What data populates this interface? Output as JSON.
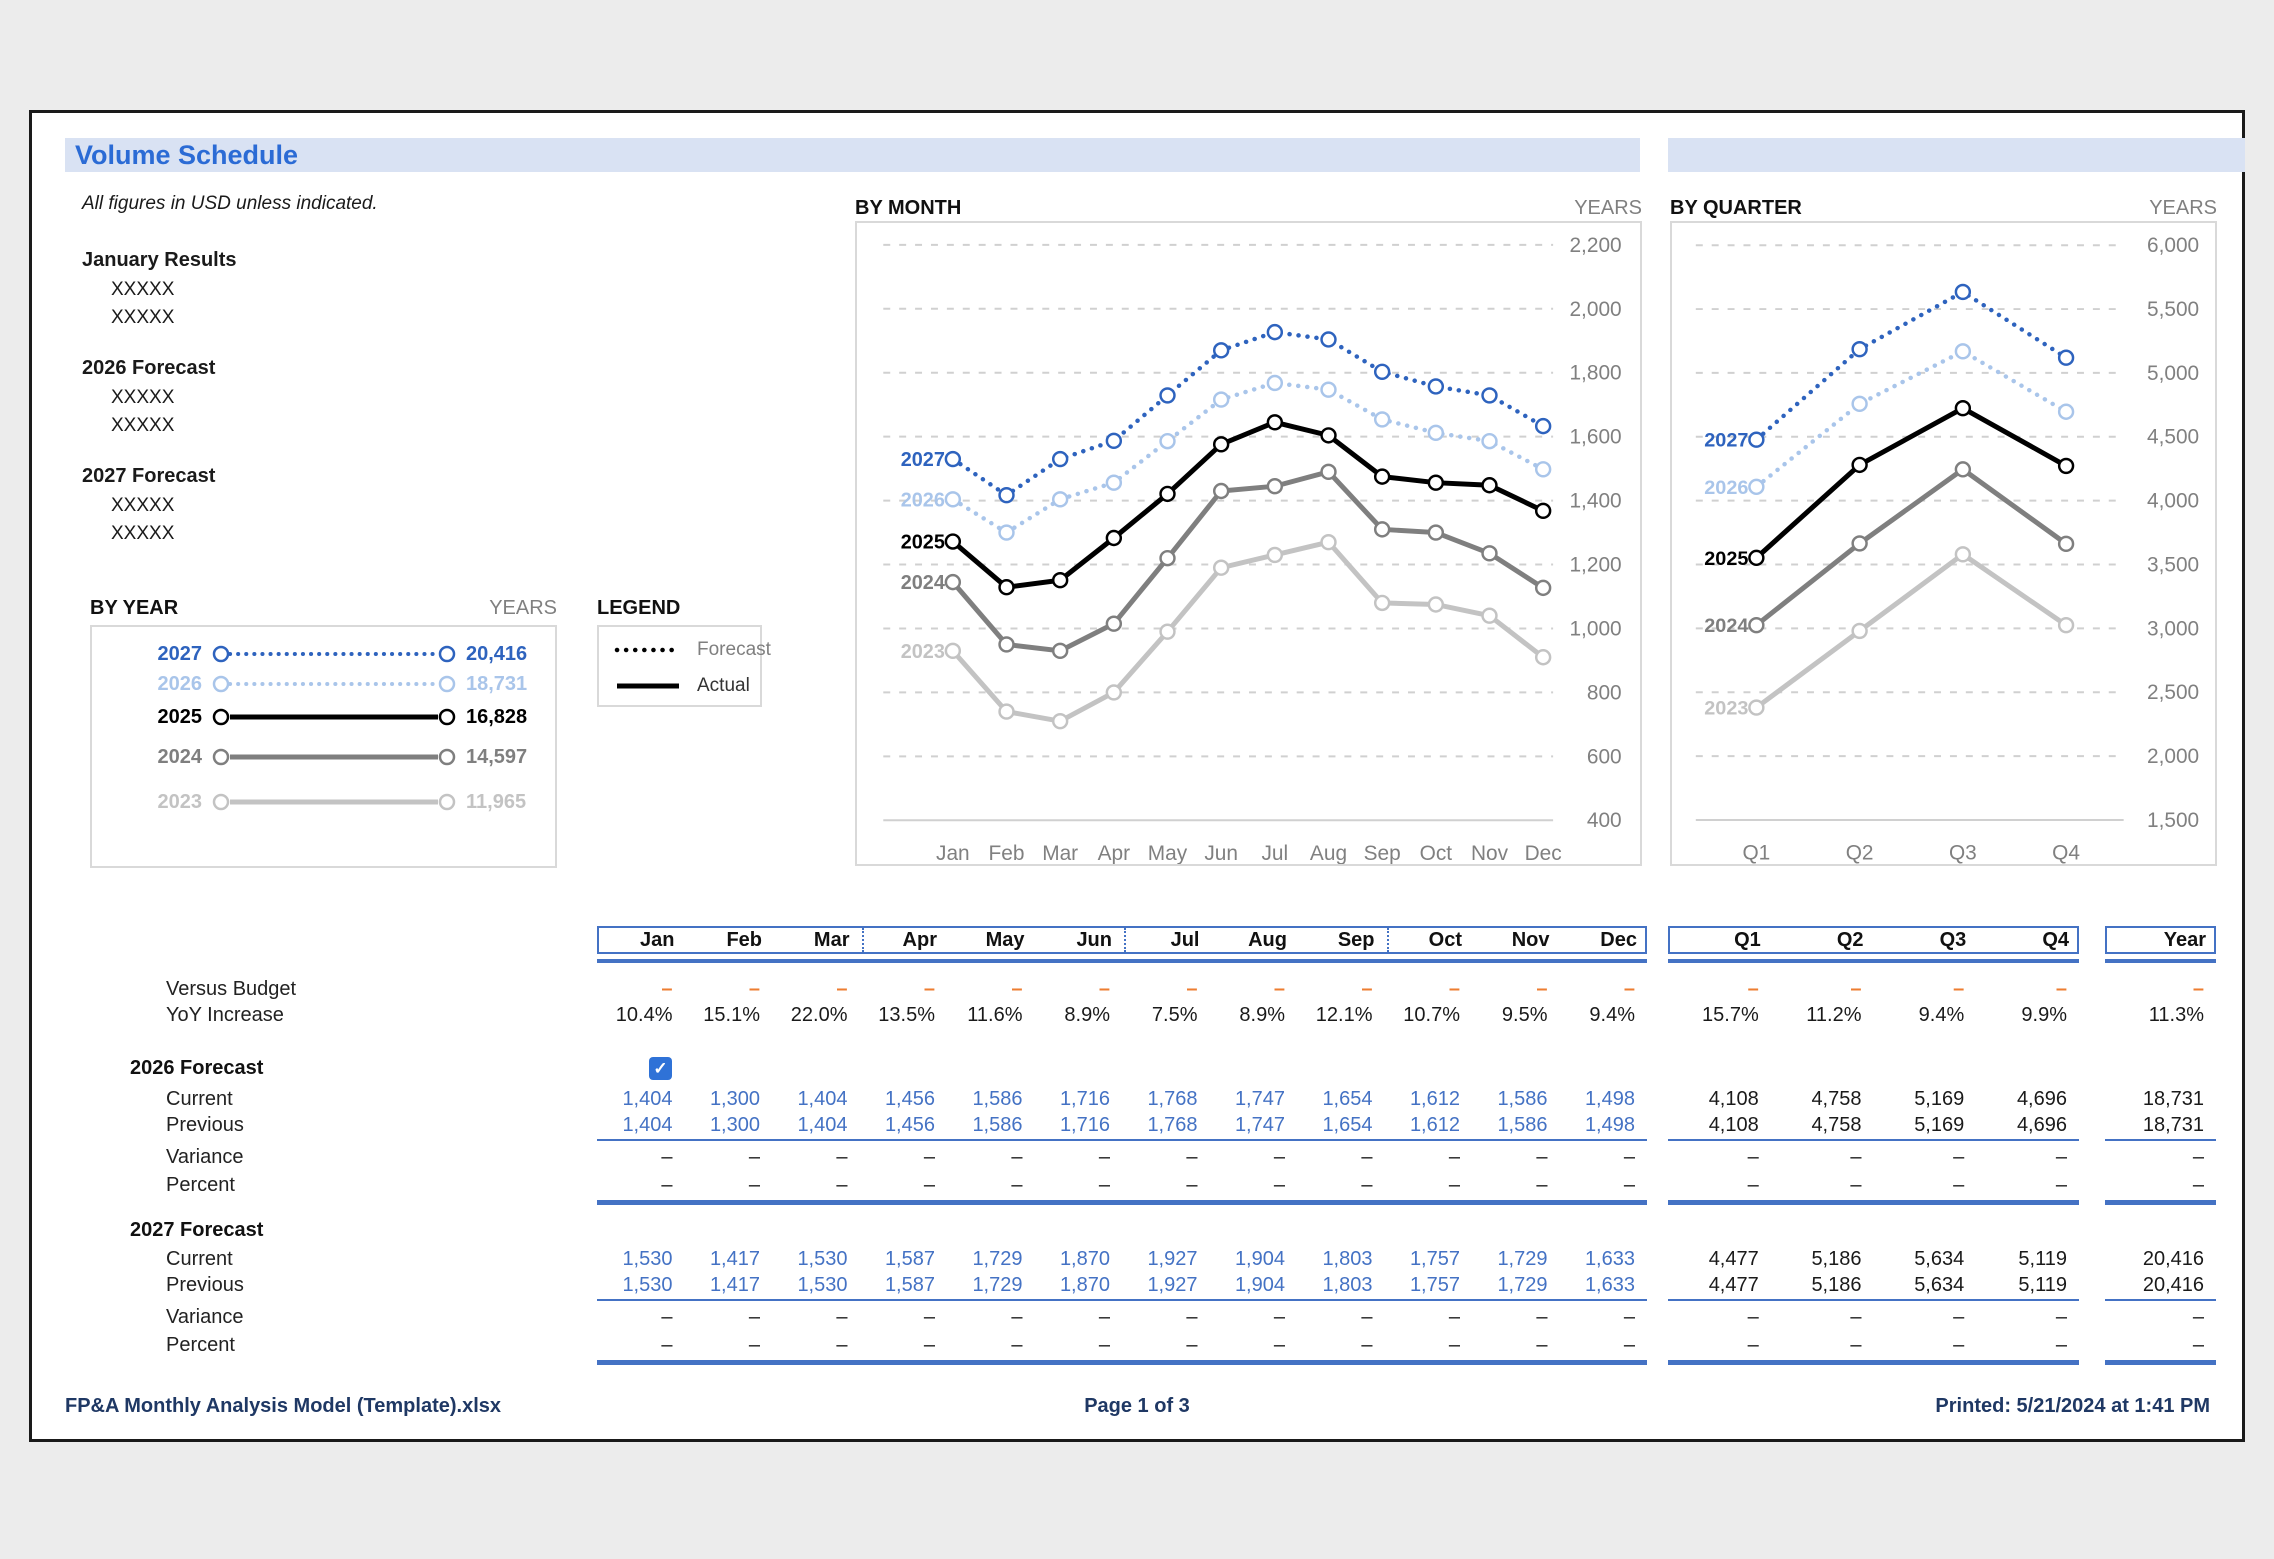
{
  "page": {
    "title": "Volume Schedule",
    "note": "All figures in USD unless indicated.",
    "left_sections": [
      {
        "heading": "January Results",
        "lines": [
          "XXXXX",
          "XXXXX"
        ]
      },
      {
        "heading": "2026 Forecast",
        "lines": [
          "XXXXX",
          "XXXXX"
        ]
      },
      {
        "heading": "2027 Forecast",
        "lines": [
          "XXXXX",
          "XXXXX"
        ]
      }
    ],
    "footer": {
      "filename": "FP&A Monthly Analysis Model (Template).xlsx",
      "page_number": "Page 1 of 3",
      "printed": "Printed: 5/21/2024 at 1:41 PM"
    }
  },
  "legend": {
    "title": "LEGEND",
    "items": [
      {
        "label": "Forecast",
        "style": "dotted"
      },
      {
        "label": "Actual",
        "style": "solid"
      }
    ]
  },
  "colors": {
    "accent_blue": "#4472C4",
    "value_blue": "#4472C4",
    "orange_dash": "#ED7D31",
    "footer_navy": "#1F3864",
    "title_blue": "#2B6BD5",
    "title_bar_bg": "#D9E2F3",
    "grid_gray": "#D0D0D0",
    "axis_gray": "#808080",
    "black_value": "#1a1a1a",
    "series": {
      "2027": "#2E63BE",
      "2026": "#A9C5EA",
      "2025": "#000000",
      "2024": "#7F7F7F",
      "2023": "#C3C3C3"
    }
  },
  "chart_data": [
    {
      "id": "by_year",
      "type": "line",
      "title": "BY YEAR",
      "unit_label": "YEARS",
      "categories": [
        "2027",
        "2026",
        "2025",
        "2024",
        "2023"
      ],
      "values": [
        20416,
        18731,
        16828,
        14597,
        11965
      ],
      "value_labels": [
        "20,416",
        "18,731",
        "16,828",
        "14,597",
        "11,965"
      ],
      "styles": [
        "dotted",
        "dotted",
        "solid",
        "solid",
        "solid"
      ]
    },
    {
      "id": "by_month",
      "type": "line",
      "title": "BY MONTH",
      "unit_label": "YEARS",
      "x": [
        "Jan",
        "Feb",
        "Mar",
        "Apr",
        "May",
        "Jun",
        "Jul",
        "Aug",
        "Sep",
        "Oct",
        "Nov",
        "Dec"
      ],
      "ylim": [
        400,
        2200
      ],
      "ytick_step": 200,
      "ytick_labels": [
        "400",
        "600",
        "800",
        "1,000",
        "1,200",
        "1,400",
        "1,600",
        "1,800",
        "2,000",
        "2,200"
      ],
      "grid": "dashed",
      "legend_position": "left-of-first-point",
      "series": [
        {
          "name": "2023",
          "style": "solid",
          "values": [
            930,
            740,
            710,
            800,
            990,
            1190,
            1230,
            1270,
            1080,
            1075,
            1040,
            910
          ]
        },
        {
          "name": "2024",
          "style": "solid",
          "values": [
            1145,
            950,
            930,
            1015,
            1220,
            1430,
            1445,
            1490,
            1310,
            1300,
            1235,
            1127
          ]
        },
        {
          "name": "2025",
          "style": "solid",
          "values": [
            1272,
            1129,
            1151,
            1283,
            1421,
            1576,
            1645,
            1604,
            1475,
            1456,
            1448,
            1368
          ]
        },
        {
          "name": "2026",
          "style": "dotted",
          "values": [
            1404,
            1300,
            1404,
            1456,
            1586,
            1716,
            1768,
            1747,
            1654,
            1612,
            1586,
            1498
          ]
        },
        {
          "name": "2027",
          "style": "dotted",
          "values": [
            1530,
            1417,
            1530,
            1587,
            1729,
            1870,
            1927,
            1904,
            1803,
            1757,
            1729,
            1633
          ]
        }
      ]
    },
    {
      "id": "by_quarter",
      "type": "line",
      "title": "BY QUARTER",
      "unit_label": "YEARS",
      "x": [
        "Q1",
        "Q2",
        "Q3",
        "Q4"
      ],
      "ylim": [
        1500,
        6000
      ],
      "ytick_step": 500,
      "ytick_labels": [
        "1,500",
        "2,000",
        "2,500",
        "3,000",
        "3,500",
        "4,000",
        "4,500",
        "5,000",
        "5,500",
        "6,000"
      ],
      "grid": "dashed",
      "legend_position": "left-of-first-point",
      "series": [
        {
          "name": "2023",
          "style": "solid",
          "values": [
            2380,
            2980,
            3580,
            3025
          ]
        },
        {
          "name": "2024",
          "style": "solid",
          "values": [
            3025,
            3665,
            4245,
            3662
          ]
        },
        {
          "name": "2025",
          "style": "solid",
          "values": [
            3552,
            4280,
            4724,
            4272
          ]
        },
        {
          "name": "2026",
          "style": "dotted",
          "values": [
            4108,
            4758,
            5169,
            4696
          ]
        },
        {
          "name": "2027",
          "style": "dotted",
          "values": [
            4477,
            5186,
            5634,
            5119
          ]
        }
      ]
    }
  ],
  "table": {
    "month_headers": [
      "Jan",
      "Feb",
      "Mar",
      "Apr",
      "May",
      "Jun",
      "Jul",
      "Aug",
      "Sep",
      "Oct",
      "Nov",
      "Dec"
    ],
    "quarter_headers": [
      "Q1",
      "Q2",
      "Q3",
      "Q4"
    ],
    "year_header": "Year",
    "simple_rows": [
      {
        "label": "Versus Budget",
        "style": "orange-dash",
        "months": [
          "–",
          "–",
          "–",
          "–",
          "–",
          "–",
          "–",
          "–",
          "–",
          "–",
          "–",
          "–"
        ],
        "quarters": [
          "–",
          "–",
          "–",
          "–"
        ],
        "year": "–"
      },
      {
        "label": "YoY Increase",
        "style": "black",
        "months": [
          "10.4%",
          "15.1%",
          "22.0%",
          "13.5%",
          "11.6%",
          "8.9%",
          "7.5%",
          "8.9%",
          "12.1%",
          "10.7%",
          "9.5%",
          "9.4%"
        ],
        "quarters": [
          "15.7%",
          "11.2%",
          "9.4%",
          "9.9%"
        ],
        "year": "11.3%"
      }
    ],
    "groups": [
      {
        "label": "2026 Forecast",
        "checkbox": true,
        "rows": [
          {
            "label": "Current",
            "style": "blue",
            "months": [
              "1,404",
              "1,300",
              "1,404",
              "1,456",
              "1,586",
              "1,716",
              "1,768",
              "1,747",
              "1,654",
              "1,612",
              "1,586",
              "1,498"
            ],
            "quarters": [
              "4,108",
              "4,758",
              "5,169",
              "4,696"
            ],
            "year": "18,731"
          },
          {
            "label": "Previous",
            "style": "blue",
            "months": [
              "1,404",
              "1,300",
              "1,404",
              "1,456",
              "1,586",
              "1,716",
              "1,768",
              "1,747",
              "1,654",
              "1,612",
              "1,586",
              "1,498"
            ],
            "quarters": [
              "4,108",
              "4,758",
              "5,169",
              "4,696"
            ],
            "year": "18,731"
          },
          {
            "label": "Variance",
            "style": "dash",
            "months": [
              "–",
              "–",
              "–",
              "–",
              "–",
              "–",
              "–",
              "–",
              "–",
              "–",
              "–",
              "–"
            ],
            "quarters": [
              "–",
              "–",
              "–",
              "–"
            ],
            "year": "–"
          },
          {
            "label": "Percent",
            "style": "dash",
            "months": [
              "–",
              "–",
              "–",
              "–",
              "–",
              "–",
              "–",
              "–",
              "–",
              "–",
              "–",
              "–"
            ],
            "quarters": [
              "–",
              "–",
              "–",
              "–"
            ],
            "year": "–"
          }
        ]
      },
      {
        "label": "2027 Forecast",
        "checkbox": false,
        "rows": [
          {
            "label": "Current",
            "style": "blue",
            "months": [
              "1,530",
              "1,417",
              "1,530",
              "1,587",
              "1,729",
              "1,870",
              "1,927",
              "1,904",
              "1,803",
              "1,757",
              "1,729",
              "1,633"
            ],
            "quarters": [
              "4,477",
              "5,186",
              "5,634",
              "5,119"
            ],
            "year": "20,416"
          },
          {
            "label": "Previous",
            "style": "blue",
            "months": [
              "1,530",
              "1,417",
              "1,530",
              "1,587",
              "1,729",
              "1,870",
              "1,927",
              "1,904",
              "1,803",
              "1,757",
              "1,729",
              "1,633"
            ],
            "quarters": [
              "4,477",
              "5,186",
              "5,634",
              "5,119"
            ],
            "year": "20,416"
          },
          {
            "label": "Variance",
            "style": "dash",
            "months": [
              "–",
              "–",
              "–",
              "–",
              "–",
              "–",
              "–",
              "–",
              "–",
              "–",
              "–",
              "–"
            ],
            "quarters": [
              "–",
              "–",
              "–",
              "–"
            ],
            "year": "–"
          },
          {
            "label": "Percent",
            "style": "dash",
            "months": [
              "–",
              "–",
              "–",
              "–",
              "–",
              "–",
              "–",
              "–",
              "–",
              "–",
              "–",
              "–"
            ],
            "quarters": [
              "–",
              "–",
              "–",
              "–"
            ],
            "year": "–"
          }
        ]
      }
    ]
  }
}
